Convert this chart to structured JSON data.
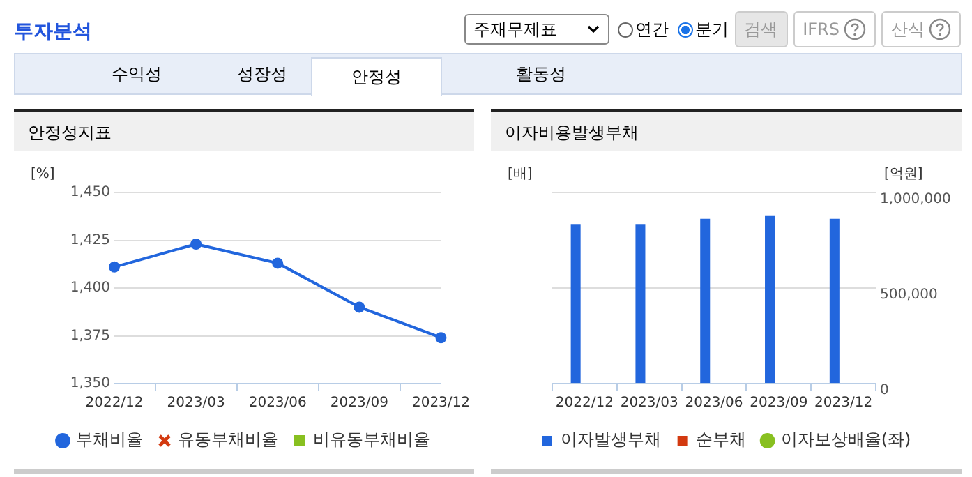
{
  "chart_data": [
    {
      "type": "other",
      "title": "투자분석",
      "annotations": [
        "주재무제표",
        "연간",
        "분기",
        "검색",
        "IFRS",
        "산식",
        "수익성",
        "성장성",
        "안정성",
        "활동성"
      ]
    },
    {
      "type": "line",
      "title": "안정성지표",
      "ylabel": "[%]",
      "categories": [
        "2022/12",
        "2023/03",
        "2023/06",
        "2023/09",
        "2023/12"
      ],
      "series": [
        {
          "name": "부채비율",
          "color": "#2266dd",
          "marker": "circle",
          "values": [
            1411,
            1423,
            1413,
            1390,
            1374
          ]
        },
        {
          "name": "유동부채비율",
          "color": "#d33a10",
          "marker": "cross",
          "values": [
            null,
            null,
            null,
            null,
            null
          ]
        },
        {
          "name": "비유동부채비율",
          "color": "#88c020",
          "marker": "square",
          "values": [
            null,
            null,
            null,
            null,
            null
          ]
        }
      ],
      "ylim": [
        1350,
        1450
      ],
      "yticks": [
        {
          "value": 1350,
          "label": "1,350"
        },
        {
          "value": 1375,
          "label": "1,375"
        },
        {
          "value": 1400,
          "label": "1,400"
        },
        {
          "value": 1425,
          "label": "1,425"
        },
        {
          "value": 1450,
          "label": "1,450"
        }
      ],
      "grid": "y",
      "legend": "bottom"
    },
    {
      "type": "bar",
      "title": "이자비용발생부채",
      "ylabel": "[배]",
      "y2label": "[억원]",
      "categories": [
        "2022/12",
        "2023/03",
        "2023/06",
        "2023/09",
        "2023/12"
      ],
      "series": [
        {
          "name": "이자발생부채",
          "color": "#2266dd",
          "axis": "y2",
          "values": [
            835000,
            835000,
            862000,
            877000,
            862000
          ]
        },
        {
          "name": "순부채",
          "color": "#d33a10",
          "axis": "y2",
          "values": [
            null,
            null,
            null,
            null,
            null
          ]
        },
        {
          "name": "이자보상배율(좌)",
          "type": "line",
          "marker": "circle",
          "color": "#88c020",
          "values": [
            null,
            null,
            null,
            null,
            null
          ]
        }
      ],
      "y2lim": [
        0,
        1000000
      ],
      "y2ticks": [
        0,
        {
          "value": 500000,
          "label": "500,000"
        },
        {
          "value": 1000000,
          "label": "1,000,000"
        }
      ],
      "grid": "y",
      "legend": "bottom"
    }
  ]
}
